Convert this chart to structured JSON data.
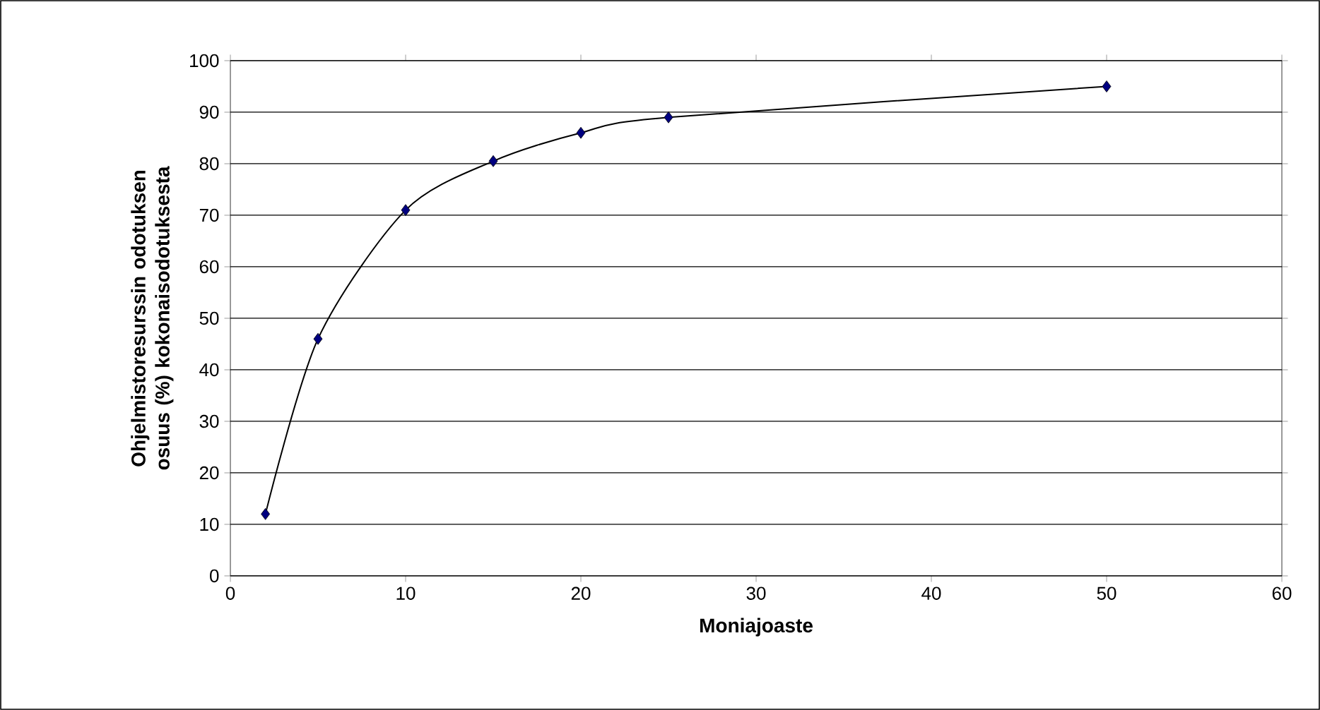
{
  "chart_data": {
    "type": "line",
    "xlabel": "Moniajoaste",
    "ylabel": "Ohjelmistoresurssin odotuksen osuus (%) kokonaisodotuksesta",
    "x": [
      2,
      5,
      10,
      15,
      20,
      25,
      50
    ],
    "series": [
      {
        "color": "#000080",
        "values": [
          12,
          46,
          71,
          80.5,
          86,
          89,
          95
        ]
      }
    ],
    "xlim": [
      0,
      60
    ],
    "xticks": [
      0,
      10,
      20,
      30,
      40,
      50,
      60
    ],
    "ylim": [
      0,
      100
    ],
    "yticks": [
      0,
      10,
      20,
      30,
      40,
      50,
      60,
      70,
      80,
      90,
      100
    ],
    "grid": "y",
    "marker": "diamond",
    "line_style": "solid"
  }
}
